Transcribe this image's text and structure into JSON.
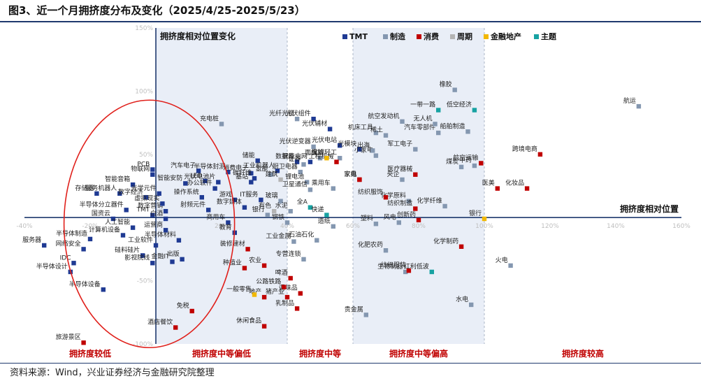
{
  "figure_title": "图3、近一个月拥挤度分布及变化（2025/4/25-2025/5/23）",
  "source_note": "资料来源：Wind，兴业证券经济与金融研究院整理",
  "chart_data": {
    "type": "scatter",
    "x_axis_label": "拥挤度相对位置",
    "y_axis_label": "拥挤度相对位置变化",
    "xlim": [
      -40,
      160
    ],
    "ylim": [
      -100,
      150
    ],
    "x_ticks": [
      "-40%",
      "-20%",
      "0%",
      "20%",
      "40%",
      "60%",
      "80%",
      "100%",
      "120%",
      "140%",
      "160%"
    ],
    "y_ticks": [
      "150%",
      "100%",
      "50%",
      "0%",
      "-50%",
      "-100%"
    ],
    "zones": [
      {
        "label": "拥挤度较低",
        "from": -40,
        "to": 0,
        "shaded": false
      },
      {
        "label": "拥挤度中等偏低",
        "from": 0,
        "to": 40,
        "shaded": true
      },
      {
        "label": "拥挤度中等",
        "from": 40,
        "to": 60,
        "shaded": false
      },
      {
        "label": "拥挤度中等偏高",
        "from": 60,
        "to": 100,
        "shaded": true
      },
      {
        "label": "拥挤度较高",
        "from": 100,
        "to": 160,
        "shaded": false
      }
    ],
    "legend_position": "top-center",
    "series": [
      {
        "name": "TMT",
        "color": "#1f3a93",
        "points": [
          {
            "label": "PCB",
            "x": -1,
            "y": 38
          },
          {
            "label": "物联网",
            "x": -1,
            "y": 34
          },
          {
            "label": "智能音箱",
            "x": -7,
            "y": 26
          },
          {
            "label": "存储器",
            "x": -18,
            "y": 19
          },
          {
            "label": "服务机器人",
            "x": -11,
            "y": 19
          },
          {
            "label": "数字经济",
            "x": -3,
            "y": 16
          },
          {
            "label": "半导体分立器件",
            "x": -9,
            "y": 6
          },
          {
            "label": "TMT",
            "x": -1,
            "y": 2
          },
          {
            "label": "国资云",
            "x": -13,
            "y": -1
          },
          {
            "label": "半导体制造",
            "x": -20,
            "y": -17
          },
          {
            "label": "计算机设备",
            "x": -10,
            "y": -14
          },
          {
            "label": "人工智能",
            "x": -7,
            "y": -8
          },
          {
            "label": "网络安全",
            "x": -22,
            "y": -25
          },
          {
            "label": "服务器",
            "x": -34,
            "y": -22
          },
          {
            "label": "IDC",
            "x": -25,
            "y": -36
          },
          {
            "label": "硅料硅片",
            "x": -4,
            "y": -30
          },
          {
            "label": "影视院线",
            "x": -1,
            "y": -36
          },
          {
            "label": "半导体设计",
            "x": -26,
            "y": -43
          },
          {
            "label": "半导体设备",
            "x": -16,
            "y": -57
          },
          {
            "label": "工业软件",
            "x": 0,
            "y": -22
          },
          {
            "label": "半导体材料",
            "x": 7,
            "y": -18
          },
          {
            "label": "金融IT",
            "x": 5,
            "y": -35
          },
          {
            "label": "出版",
            "x": 8,
            "y": -33
          },
          {
            "label": "运营商",
            "x": 3,
            "y": -10
          },
          {
            "label": "数字营销",
            "x": 3,
            "y": 5
          },
          {
            "label": "白酒",
            "x": 3,
            "y": -1
          },
          {
            "label": "虚拟现实",
            "x": 2,
            "y": 11
          },
          {
            "label": "光学元件",
            "x": 1,
            "y": 19
          },
          {
            "label": "智能安防",
            "x": 9,
            "y": 27
          },
          {
            "label": "汽车电子",
            "x": 13,
            "y": 37
          },
          {
            "label": "半导体封测",
            "x": 22,
            "y": 36
          },
          {
            "label": "LED",
            "x": 15,
            "y": 29
          },
          {
            "label": "办公软件",
            "x": 18,
            "y": 23
          },
          {
            "label": "操作系统",
            "x": 14,
            "y": 16
          },
          {
            "label": "射频元件",
            "x": 16,
            "y": 6
          },
          {
            "label": "光伏电池片",
            "x": 19,
            "y": 28
          },
          {
            "label": "游戏",
            "x": 24,
            "y": 14
          },
          {
            "label": "数字媒体",
            "x": 27,
            "y": 8
          },
          {
            "label": "商用车",
            "x": 22,
            "y": -4
          },
          {
            "label": "教育",
            "x": 24,
            "y": -12
          },
          {
            "label": "消费电子",
            "x": 29,
            "y": 35
          },
          {
            "label": "储能",
            "x": 31,
            "y": 45
          },
          {
            "label": "基站",
            "x": 29,
            "y": 28
          },
          {
            "label": "碳纤维",
            "x": 30,
            "y": 31
          },
          {
            "label": "工业机器人",
            "x": 37,
            "y": 37
          },
          {
            "label": "IT服务",
            "x": 32,
            "y": 14
          },
          {
            "label": "光伏组件",
            "x": 48,
            "y": 78
          },
          {
            "label": "光伏辅材",
            "x": 53,
            "y": 70
          },
          {
            "label": "光伏电站",
            "x": 56,
            "y": 57
          },
          {
            "label": "智能电网",
            "x": 47,
            "y": 44
          },
          {
            "label": "光模块",
            "x": 62,
            "y": 54
          },
          {
            "label": "数据库",
            "x": 43,
            "y": 44
          }
        ]
      },
      {
        "name": "制造",
        "color": "#8497b0",
        "points": [
          {
            "label": "充电桩",
            "x": 20,
            "y": 74
          },
          {
            "label": "光纤光缆",
            "x": 43,
            "y": 78
          },
          {
            "label": "光伏逆变器",
            "x": 48,
            "y": 56
          },
          {
            "label": "面板",
            "x": 50,
            "y": 47
          },
          {
            "label": "证券",
            "x": 45,
            "y": 42
          },
          {
            "label": "氢能",
            "x": 35,
            "y": 34
          },
          {
            "label": "厨卫电器",
            "x": 44,
            "y": 36
          },
          {
            "label": "锂电池",
            "x": 46,
            "y": 28
          },
          {
            "label": "卫星通信",
            "x": 47,
            "y": 22
          },
          {
            "label": "乘用车",
            "x": 54,
            "y": 23
          },
          {
            "label": "玻璃",
            "x": 38,
            "y": 13
          },
          {
            "label": "水泥",
            "x": 41,
            "y": 5
          },
          {
            "label": "钢铁",
            "x": 40,
            "y": -4
          },
          {
            "label": "银行",
            "x": 34,
            "y": 2
          },
          {
            "label": "造纸",
            "x": 54,
            "y": -7
          },
          {
            "label": "工业金属",
            "x": 42,
            "y": -19
          },
          {
            "label": "石油石化",
            "x": 49,
            "y": -18
          },
          {
            "label": "专营连锁",
            "x": 45,
            "y": -33
          },
          {
            "label": "塑料",
            "x": 67,
            "y": -5
          },
          {
            "label": "风电",
            "x": 74,
            "y": -4
          },
          {
            "label": "化肥农药",
            "x": 70,
            "y": -26
          },
          {
            "label": "生物制品",
            "x": 76,
            "y": -43
          },
          {
            "label": "化学原料",
            "x": 77,
            "y": 13
          },
          {
            "label": "化学纤维",
            "x": 88,
            "y": 9
          },
          {
            "label": "机床工具",
            "x": 67,
            "y": 67
          },
          {
            "label": "稀土",
            "x": 70,
            "y": 65
          },
          {
            "label": "航空发动机",
            "x": 75,
            "y": 76
          },
          {
            "label": "军工电子",
            "x": 79,
            "y": 54
          },
          {
            "label": "汽车零部件",
            "x": 86,
            "y": 67
          },
          {
            "label": "无人机",
            "x": 85,
            "y": 74
          },
          {
            "label": "船舶制造",
            "x": 95,
            "y": 68
          },
          {
            "label": "橡胶",
            "x": 91,
            "y": 101
          },
          {
            "label": "煤炭",
            "x": 93,
            "y": 40
          },
          {
            "label": "航运",
            "x": 147,
            "y": 88
          },
          {
            "label": "火电",
            "x": 108,
            "y": -38
          },
          {
            "label": "水电",
            "x": 96,
            "y": -69
          },
          {
            "label": "贵金属",
            "x": 64,
            "y": -77
          },
          {
            "label": "小家电",
            "x": 67,
            "y": 49
          },
          {
            "label": "出海",
            "x": 66,
            "y": 53
          },
          {
            "label": "央企",
            "x": 75,
            "y": 30
          },
          {
            "label": "中药",
            "x": 97,
            "y": 41
          },
          {
            "label": "文娱轻工",
            "x": 56,
            "y": 47
          }
        ]
      },
      {
        "name": "消费",
        "color": "#c00000",
        "points": [
          {
            "label": "工程机械",
            "x": 55,
            "y": 44
          },
          {
            "label": "家具",
            "x": 62,
            "y": 30
          },
          {
            "label": "纺织服饰",
            "x": 70,
            "y": 16
          },
          {
            "label": "医疗器械",
            "x": 79,
            "y": 34
          },
          {
            "label": "纺织制造",
            "x": 79,
            "y": 7
          },
          {
            "label": "创新药",
            "x": 80,
            "y": -2
          },
          {
            "label": "航空运输",
            "x": 99,
            "y": 43
          },
          {
            "label": "医美",
            "x": 104,
            "y": 23
          },
          {
            "label": "化妆品",
            "x": 113,
            "y": 23
          },
          {
            "label": "跨境电商",
            "x": 117,
            "y": 50
          },
          {
            "label": "化学制药",
            "x": 93,
            "y": -23
          },
          {
            "label": "纺织服装",
            "x": 77,
            "y": -42
          },
          {
            "label": "啤酒",
            "x": 41,
            "y": -48
          },
          {
            "label": "调味品",
            "x": 44,
            "y": -60
          },
          {
            "label": "公路铁路",
            "x": 39,
            "y": -55
          },
          {
            "label": "地产",
            "x": 33,
            "y": -63
          },
          {
            "label": "猪产业",
            "x": 40,
            "y": -63
          },
          {
            "label": "乳制品",
            "x": 43,
            "y": -72
          },
          {
            "label": "种植业",
            "x": 27,
            "y": -40
          },
          {
            "label": "装修建材",
            "x": 28,
            "y": -25
          },
          {
            "label": "休闲食品",
            "x": 33,
            "y": -86
          },
          {
            "label": "免税",
            "x": 11,
            "y": -74
          },
          {
            "label": "酒店餐饮",
            "x": 6,
            "y": -87
          },
          {
            "label": "旅游景区",
            "x": -22,
            "y": -99
          },
          {
            "label": "家电",
            "x": 62,
            "y": 30
          },
          {
            "label": "农业",
            "x": 33,
            "y": -38
          }
        ]
      },
      {
        "name": "周期",
        "color": "#b4b4b4",
        "points": [
          {
            "label": "建筑",
            "x": 38,
            "y": 30
          },
          {
            "label": "有色",
            "x": 36,
            "y": 5
          }
        ]
      },
      {
        "name": "金融地产",
        "color": "#f2b800",
        "points": [
          {
            "label": "保险",
            "x": 52,
            "y": 47
          },
          {
            "label": "银行",
            "x": 100,
            "y": -1
          },
          {
            "label": "一般零售",
            "x": 30,
            "y": -61
          }
        ]
      },
      {
        "name": "主题",
        "color": "#17a2a2",
        "points": [
          {
            "label": "全A",
            "x": 47,
            "y": 8
          },
          {
            "label": "一带一路",
            "x": 86,
            "y": 85
          },
          {
            "label": "低空经济",
            "x": 97,
            "y": 85
          },
          {
            "label": "红利低波",
            "x": 84,
            "y": -43
          },
          {
            "label": "快递",
            "x": 52,
            "y": 2
          }
        ]
      }
    ]
  }
}
